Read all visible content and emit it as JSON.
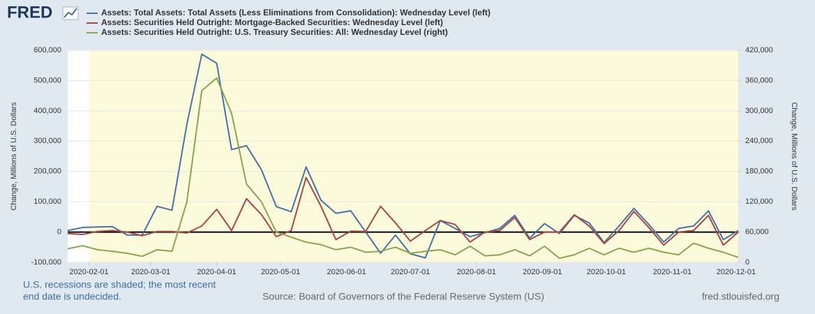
{
  "chart_data": {
    "type": "line",
    "logo": "FRED",
    "x": [
      "2020-01-22",
      "2020-01-29",
      "2020-02-05",
      "2020-02-12",
      "2020-02-19",
      "2020-02-26",
      "2020-03-04",
      "2020-03-11",
      "2020-03-18",
      "2020-03-25",
      "2020-04-01",
      "2020-04-08",
      "2020-04-15",
      "2020-04-22",
      "2020-04-29",
      "2020-05-06",
      "2020-05-13",
      "2020-05-20",
      "2020-05-27",
      "2020-06-03",
      "2020-06-10",
      "2020-06-17",
      "2020-06-24",
      "2020-07-01",
      "2020-07-08",
      "2020-07-15",
      "2020-07-22",
      "2020-07-29",
      "2020-08-05",
      "2020-08-12",
      "2020-08-19",
      "2020-08-26",
      "2020-09-02",
      "2020-09-09",
      "2020-09-16",
      "2020-09-23",
      "2020-09-30",
      "2020-10-07",
      "2020-10-14",
      "2020-10-21",
      "2020-10-28",
      "2020-11-04",
      "2020-11-11",
      "2020-11-18",
      "2020-11-25",
      "2020-12-02"
    ],
    "series": [
      {
        "name": "Assets: Total Assets: Total Assets (Less Eliminations from Consolidation): Wednesday Level (left)",
        "color": "#4572a7",
        "axis": "y",
        "values": [
          5000,
          15000,
          17000,
          18000,
          -10000,
          -10000,
          85000,
          72000,
          356000,
          587000,
          557000,
          272000,
          285000,
          206000,
          84000,
          67000,
          215000,
          105000,
          62000,
          70000,
          0,
          -70000,
          -10000,
          -72000,
          -85000,
          38000,
          12000,
          -15000,
          -2000,
          12000,
          55000,
          -20000,
          28000,
          -5000,
          55000,
          30000,
          -35000,
          20000,
          78000,
          25000,
          -33000,
          12000,
          20000,
          70000,
          -25000,
          5000
        ]
      },
      {
        "name": "Assets: Securities Held Outright: Mortgage-Backed Securities: Wednesday Level (left)",
        "color": "#aa4643",
        "axis": "y",
        "values": [
          -5000,
          -8000,
          2000,
          5000,
          0,
          -12000,
          2000,
          2000,
          -3000,
          20000,
          75000,
          5000,
          110000,
          58000,
          -15000,
          5000,
          180000,
          85000,
          -25000,
          3000,
          2000,
          85000,
          30000,
          -30000,
          5000,
          38000,
          25000,
          -33000,
          0,
          5000,
          48000,
          -25000,
          0,
          0,
          57000,
          20000,
          -38000,
          5000,
          68000,
          15000,
          -43000,
          0,
          5000,
          55000,
          -43000,
          0
        ]
      },
      {
        "name": "Assets: Securities Held Outright: U.S. Treasury Securities: All: Wednesday Level (right)",
        "color": "#89a54e",
        "axis": "y2",
        "values": [
          27000,
          33000,
          25000,
          22000,
          18000,
          12000,
          25000,
          22000,
          120000,
          340000,
          365000,
          295000,
          155000,
          120000,
          60000,
          50000,
          40000,
          35000,
          25000,
          30000,
          20000,
          22000,
          30000,
          18000,
          22000,
          25000,
          15000,
          32000,
          13000,
          15000,
          25000,
          13000,
          32000,
          8000,
          15000,
          28000,
          15000,
          28000,
          20000,
          28000,
          20000,
          15000,
          38000,
          28000,
          20000,
          10000
        ]
      }
    ],
    "xlim": [
      "2020-01-22",
      "2020-12-02"
    ],
    "xticks": [
      "2020-02-01",
      "2020-03-01",
      "2020-04-01",
      "2020-05-01",
      "2020-06-01",
      "2020-07-01",
      "2020-08-01",
      "2020-09-01",
      "2020-10-01",
      "2020-11-01",
      "2020-12-01"
    ],
    "ylim": [
      -100000,
      600000
    ],
    "yticks": [
      {
        "value": -100000,
        "label": "-100,000"
      },
      0,
      {
        "value": 100000,
        "label": "100,000"
      },
      {
        "value": 200000,
        "label": "200,000"
      },
      {
        "value": 300000,
        "label": "300,000"
      },
      {
        "value": 400000,
        "label": "400,000"
      },
      {
        "value": 500000,
        "label": "500,000"
      },
      {
        "value": 600000,
        "label": "600,000"
      }
    ],
    "y2lim": [
      0,
      420000
    ],
    "y2ticks": [
      0,
      {
        "value": 60000,
        "label": "60,000"
      },
      {
        "value": 120000,
        "label": "120,000"
      },
      {
        "value": 180000,
        "label": "180,000"
      },
      {
        "value": 240000,
        "label": "240,000"
      },
      {
        "value": 300000,
        "label": "300,000"
      },
      {
        "value": 360000,
        "label": "360,000"
      },
      {
        "value": 420000,
        "label": "420,000"
      }
    ],
    "ylabel": "Change, Millions of U.S. Dollars",
    "y2label": "Change, Millions of U.S. Dollars",
    "recession_start": "2020-02-01",
    "zero_line": true,
    "note": [
      "U.S. recessions are shaded; the most recent",
      "end date is undecided."
    ],
    "source": "Source: Board of Governors of the Federal Reserve System (US)",
    "site": "fred.stlouisfed.org"
  }
}
